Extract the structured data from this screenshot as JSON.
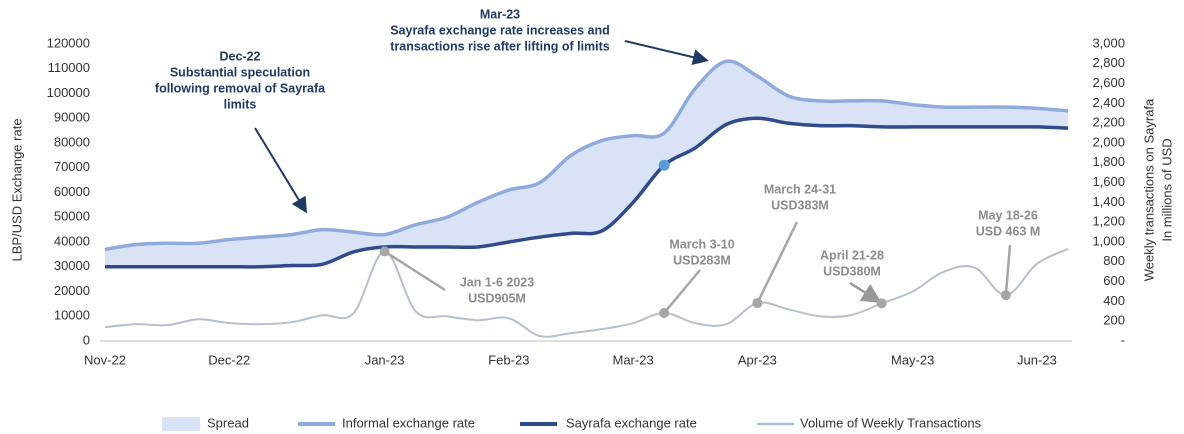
{
  "chart_data": {
    "type": "line",
    "ylabel": "LBP/USD Exchange rate",
    "y2label": [
      "Weekly transactions on Sayrafa",
      "In millions of USD"
    ],
    "categories": [
      "Nov-22",
      null,
      null,
      null,
      "Dec-22",
      null,
      null,
      null,
      null,
      "Jan-23",
      null,
      null,
      null,
      "Feb-23",
      null,
      null,
      null,
      "Mar-23",
      null,
      null,
      null,
      "Apr-23",
      null,
      null,
      null,
      null,
      "May-23",
      null,
      null,
      null,
      "Jun-23",
      null
    ],
    "spread": {
      "name": "Spread",
      "color": "#dae3f5"
    },
    "series": [
      {
        "name": "Informal exchange rate",
        "color": "#8faadc",
        "values": [
          37000,
          39000,
          39500,
          39500,
          41000,
          42000,
          43000,
          45000,
          44000,
          43000,
          47000,
          50000,
          56000,
          61000,
          64000,
          75000,
          81000,
          83000,
          84000,
          102000,
          113000,
          107000,
          99000,
          97000,
          97000,
          97000,
          95500,
          94500,
          94500,
          94500,
          94000,
          93000
        ]
      },
      {
        "name": "Sayrafa exchange rate",
        "color": "#2f4b8c",
        "values": [
          30000,
          30000,
          30000,
          30000,
          30000,
          30000,
          30500,
          31000,
          36000,
          38000,
          38000,
          38000,
          38000,
          40000,
          42000,
          43500,
          44500,
          56000,
          71000,
          78000,
          87500,
          90000,
          88000,
          87000,
          87000,
          86500,
          86500,
          86500,
          86500,
          86500,
          86500,
          86000
        ]
      },
      {
        "name": "Volume of Weekly Transactions",
        "color": "#b4bfd1",
        "axis": "y2",
        "values": [
          140,
          170,
          160,
          220,
          180,
          170,
          190,
          260,
          280,
          905,
          300,
          250,
          210,
          230,
          50,
          80,
          120,
          180,
          283,
          180,
          170,
          383,
          320,
          250,
          260,
          380,
          500,
          700,
          740,
          463,
          780,
          930
        ]
      }
    ],
    "ylim": [
      0,
      120000
    ],
    "yticks": [
      0,
      10000,
      20000,
      30000,
      40000,
      50000,
      60000,
      70000,
      80000,
      90000,
      100000,
      110000,
      120000
    ],
    "y2lim": [
      0,
      3000
    ],
    "y2ticks": [
      {
        "value": 0,
        "label": "-"
      },
      200,
      400,
      600,
      800,
      {
        "value": 1000,
        "label": "1,000"
      },
      {
        "value": 1200,
        "label": "1,200"
      },
      {
        "value": 1400,
        "label": "1,400"
      },
      {
        "value": 1600,
        "label": "1,600"
      },
      {
        "value": 1800,
        "label": "1,800"
      },
      {
        "value": 2000,
        "label": "2,000"
      },
      {
        "value": 2200,
        "label": "2,200"
      },
      {
        "value": 2400,
        "label": "2,400"
      },
      {
        "value": 2600,
        "label": "2,600"
      },
      {
        "value": 2800,
        "label": "2,800"
      },
      {
        "value": 3000,
        "label": "3,000"
      }
    ],
    "annotations": [
      {
        "lines": [
          "Dec-22",
          "Substantial speculation",
          "following removal of Sayrafa",
          "limits"
        ]
      },
      {
        "lines": [
          "Mar-23",
          "Sayrafa exchange rate increases and",
          "transactions rise after lifting of limits"
        ],
        "series": 1,
        "index": 18
      },
      {
        "lines": [
          "Jan 1-6 2023",
          "USD905M"
        ],
        "series": 2,
        "index": 9
      },
      {
        "lines": [
          "March 3-10",
          "USD283M"
        ],
        "series": 2,
        "index": 18
      },
      {
        "lines": [
          "March 24-31",
          "USD383M"
        ],
        "series": 2,
        "index": 21
      },
      {
        "lines": [
          "April 21-28",
          "USD380M"
        ],
        "series": 2,
        "index": 25
      },
      {
        "lines": [
          "May 18-26",
          "USD 463 M"
        ],
        "series": 2,
        "index": 29
      }
    ]
  }
}
